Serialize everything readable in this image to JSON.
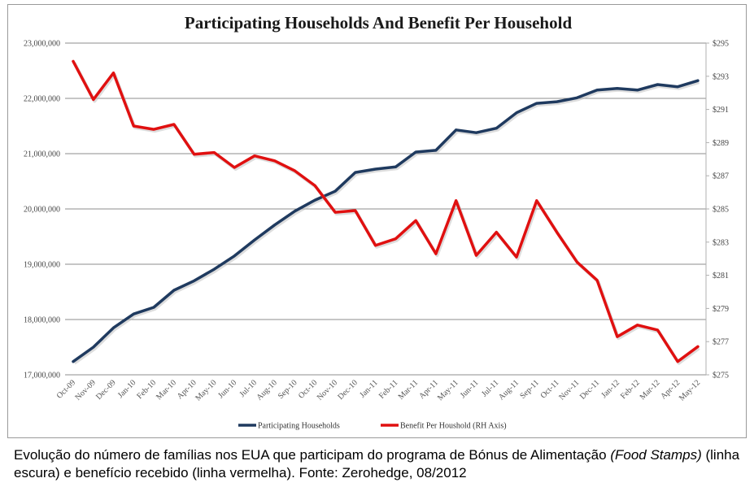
{
  "chart_data": {
    "type": "line",
    "title": "Participating Households And Benefit Per Household",
    "x": [
      "Oct-09",
      "Nov-09",
      "Dec-09",
      "Jan-10",
      "Feb-10",
      "Mar-10",
      "Apr-10",
      "May-10",
      "Jun-10",
      "Jul-10",
      "Aug-10",
      "Sep-10",
      "Oct-10",
      "Nov-10",
      "Dec-10",
      "Jan-11",
      "Feb-11",
      "Mar-11",
      "Apr-11",
      "May-11",
      "Jun-11",
      "Jul-11",
      "Aug-11",
      "Sep-11",
      "Oct-11",
      "Nov-11",
      "Dec-11",
      "Jan-12",
      "Feb-12",
      "Mar-12",
      "Apr-12",
      "May-12"
    ],
    "y_left": {
      "ylim": [
        17000000,
        23000000
      ],
      "ticks": [
        17000000,
        18000000,
        19000000,
        20000000,
        21000000,
        22000000,
        23000000
      ],
      "tick_labels": [
        "17,000,000",
        "18,000,000",
        "19,000,000",
        "20,000,000",
        "21,000,000",
        "22,000,000",
        "23,000,000"
      ]
    },
    "y_right": {
      "ylim": [
        275,
        295
      ],
      "ticks": [
        275,
        277,
        279,
        281,
        283,
        285,
        287,
        289,
        291,
        293,
        295
      ],
      "tick_labels": [
        "$275",
        "$277",
        "$279",
        "$281",
        "$283",
        "$285",
        "$287",
        "$289",
        "$291",
        "$293",
        "$295"
      ]
    },
    "grid": true,
    "legend_position": "bottom",
    "series": [
      {
        "name": "Participating Households",
        "axis": "left",
        "color": "#1f3a5f",
        "values": [
          17240000,
          17500000,
          17850000,
          18100000,
          18220000,
          18530000,
          18700000,
          18910000,
          19150000,
          19440000,
          19710000,
          19960000,
          20160000,
          20320000,
          20660000,
          20720000,
          20760000,
          21030000,
          21060000,
          21430000,
          21380000,
          21460000,
          21740000,
          21910000,
          21940000,
          22010000,
          22150000,
          22180000,
          22150000,
          22250000,
          22210000,
          22320000
        ]
      },
      {
        "name": "Benefit Per Houshold (RH Axis)",
        "axis": "right",
        "color": "#e01010",
        "values": [
          293.9,
          291.6,
          293.2,
          290.0,
          289.8,
          290.1,
          288.3,
          288.4,
          287.5,
          288.2,
          287.9,
          287.3,
          286.4,
          284.8,
          284.9,
          282.8,
          283.2,
          284.3,
          282.3,
          285.5,
          282.2,
          283.6,
          282.1,
          285.5,
          283.6,
          281.8,
          280.7,
          277.3,
          278.0,
          277.7,
          275.8,
          276.7
        ]
      }
    ]
  },
  "caption": {
    "part1": "Evolução do número de famílias nos EUA que participam do programa de Bónus de Alimentação ",
    "italic": "(Food Stamps)",
    "part2": "  (linha escura) e benefício recebido (linha vermelha).  Fonte: Zerohedge, 08/2012"
  }
}
